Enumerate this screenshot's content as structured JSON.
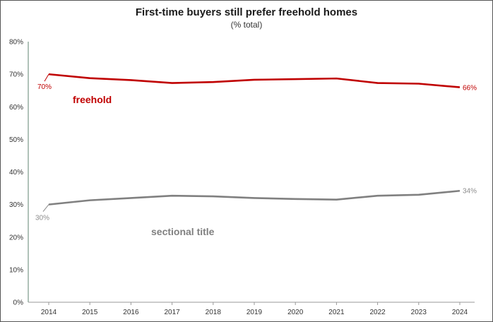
{
  "chart_data": {
    "type": "line",
    "title": "First-time buyers still prefer freehold homes",
    "subtitle": "(% total)",
    "xlabel": "",
    "ylabel": "",
    "categories": [
      "2014",
      "2015",
      "2016",
      "2017",
      "2018",
      "2019",
      "2020",
      "2021",
      "2022",
      "2023",
      "2024"
    ],
    "ylim": [
      0,
      80
    ],
    "yticks": [
      "0%",
      "10%",
      "20%",
      "30%",
      "40%",
      "50%",
      "60%",
      "70%",
      "80%"
    ],
    "grid": false,
    "legend": "none",
    "series": [
      {
        "name": "freehold",
        "color": "#c00000",
        "values": [
          70,
          68.8,
          68.2,
          67.3,
          67.6,
          68.3,
          68.5,
          68.7,
          67.3,
          67.1,
          66
        ],
        "start_label": "70%",
        "end_label": "66%"
      },
      {
        "name": "sectional title",
        "color": "#808080",
        "values": [
          30,
          31.3,
          32,
          32.7,
          32.5,
          32,
          31.7,
          31.5,
          32.7,
          33,
          34.2
        ],
        "start_label": "30%",
        "end_label": "34%"
      }
    ]
  }
}
